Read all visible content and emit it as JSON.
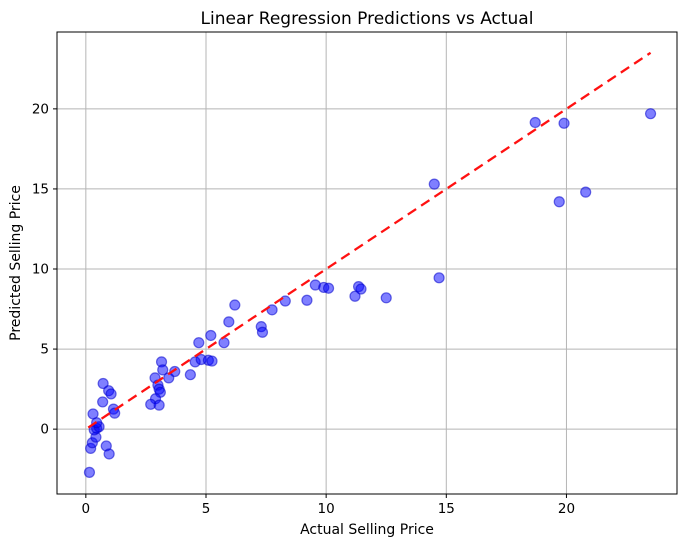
{
  "chart_data": {
    "type": "scatter",
    "title": "Linear Regression Predictions vs Actual",
    "xlabel": "Actual Selling Price",
    "ylabel": "Predicted Selling Price",
    "xlim": [
      -1.2,
      24.6
    ],
    "ylim": [
      -4.05,
      24.8
    ],
    "x_ticks": [
      0,
      5,
      10,
      15,
      20
    ],
    "y_ticks": [
      0,
      5,
      10,
      15,
      20
    ],
    "grid": true,
    "legend_position": "none",
    "colors": {
      "marker_fill": "#0000ff",
      "marker_edge": "#0000cc",
      "reference_line": "#ff1111",
      "grid_line": "#b5b5b5",
      "frame": "#000000"
    },
    "marker": {
      "shape": "circle",
      "radius": 5,
      "opacity": 0.5
    },
    "reference_line": {
      "description": "identity line y = x, red dashed",
      "x1": 0.1,
      "y1": 0.1,
      "x2": 23.5,
      "y2": 23.5,
      "style": "dashed"
    },
    "series": [
      {
        "name": "predicted-vs-actual",
        "points": [
          [
            0.15,
            -2.7
          ],
          [
            0.2,
            -1.2
          ],
          [
            0.27,
            -0.85
          ],
          [
            0.42,
            -0.5
          ],
          [
            0.35,
            -0.05
          ],
          [
            0.45,
            0.05
          ],
          [
            0.55,
            0.15
          ],
          [
            0.45,
            0.4
          ],
          [
            0.3,
            0.95
          ],
          [
            0.7,
            1.7
          ],
          [
            0.72,
            2.85
          ],
          [
            0.95,
            2.4
          ],
          [
            1.05,
            2.2
          ],
          [
            1.15,
            1.25
          ],
          [
            1.2,
            1.0
          ],
          [
            0.85,
            -1.05
          ],
          [
            0.97,
            -1.55
          ],
          [
            3.15,
            4.2
          ],
          [
            3.2,
            3.7
          ],
          [
            2.88,
            3.2
          ],
          [
            3.45,
            3.2
          ],
          [
            3.0,
            2.75
          ],
          [
            3.05,
            2.5
          ],
          [
            3.1,
            2.3
          ],
          [
            2.9,
            1.9
          ],
          [
            2.7,
            1.55
          ],
          [
            3.05,
            1.5
          ],
          [
            3.7,
            3.6
          ],
          [
            4.35,
            3.4
          ],
          [
            4.55,
            4.2
          ],
          [
            4.8,
            4.35
          ],
          [
            5.1,
            4.3
          ],
          [
            5.25,
            4.25
          ],
          [
            4.7,
            5.4
          ],
          [
            5.2,
            5.85
          ],
          [
            5.75,
            5.4
          ],
          [
            5.95,
            6.7
          ],
          [
            6.2,
            7.75
          ],
          [
            7.3,
            6.4
          ],
          [
            7.35,
            6.05
          ],
          [
            7.75,
            7.45
          ],
          [
            8.3,
            8.0
          ],
          [
            9.2,
            8.05
          ],
          [
            9.55,
            9.0
          ],
          [
            9.9,
            8.85
          ],
          [
            10.1,
            8.8
          ],
          [
            11.35,
            8.9
          ],
          [
            11.45,
            8.75
          ],
          [
            11.2,
            8.3
          ],
          [
            12.5,
            8.2
          ],
          [
            14.5,
            15.3
          ],
          [
            14.7,
            9.45
          ],
          [
            18.7,
            19.15
          ],
          [
            19.9,
            19.1
          ],
          [
            19.7,
            14.2
          ],
          [
            20.8,
            14.8
          ],
          [
            23.5,
            19.7
          ]
        ]
      }
    ]
  }
}
